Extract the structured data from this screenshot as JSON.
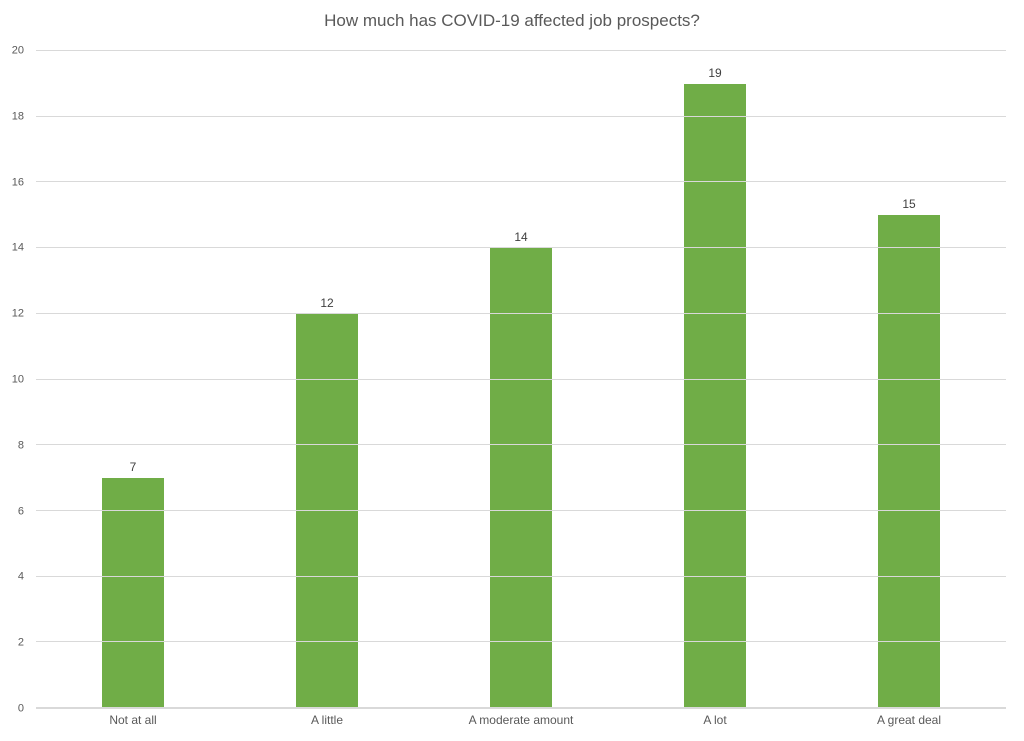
{
  "chart_data": {
    "type": "bar",
    "title": "How much has COVID-19 affected job prospects?",
    "categories": [
      "Not at all",
      "A little",
      "A moderate amount",
      "A lot",
      "A great deal"
    ],
    "values": [
      7,
      12,
      14,
      19,
      15
    ],
    "xlabel": "",
    "ylabel": "",
    "ylim": [
      0,
      20
    ],
    "yticks": [
      0,
      2,
      4,
      6,
      8,
      10,
      12,
      14,
      16,
      18,
      20
    ],
    "grid": true,
    "legend": false,
    "bar_color": "#70AD47",
    "gridline_color": "#D9D9D9",
    "axis_text_color": "#595959",
    "value_label_color": "#404040",
    "title_color": "#595959",
    "background": "#FFFFFF"
  }
}
